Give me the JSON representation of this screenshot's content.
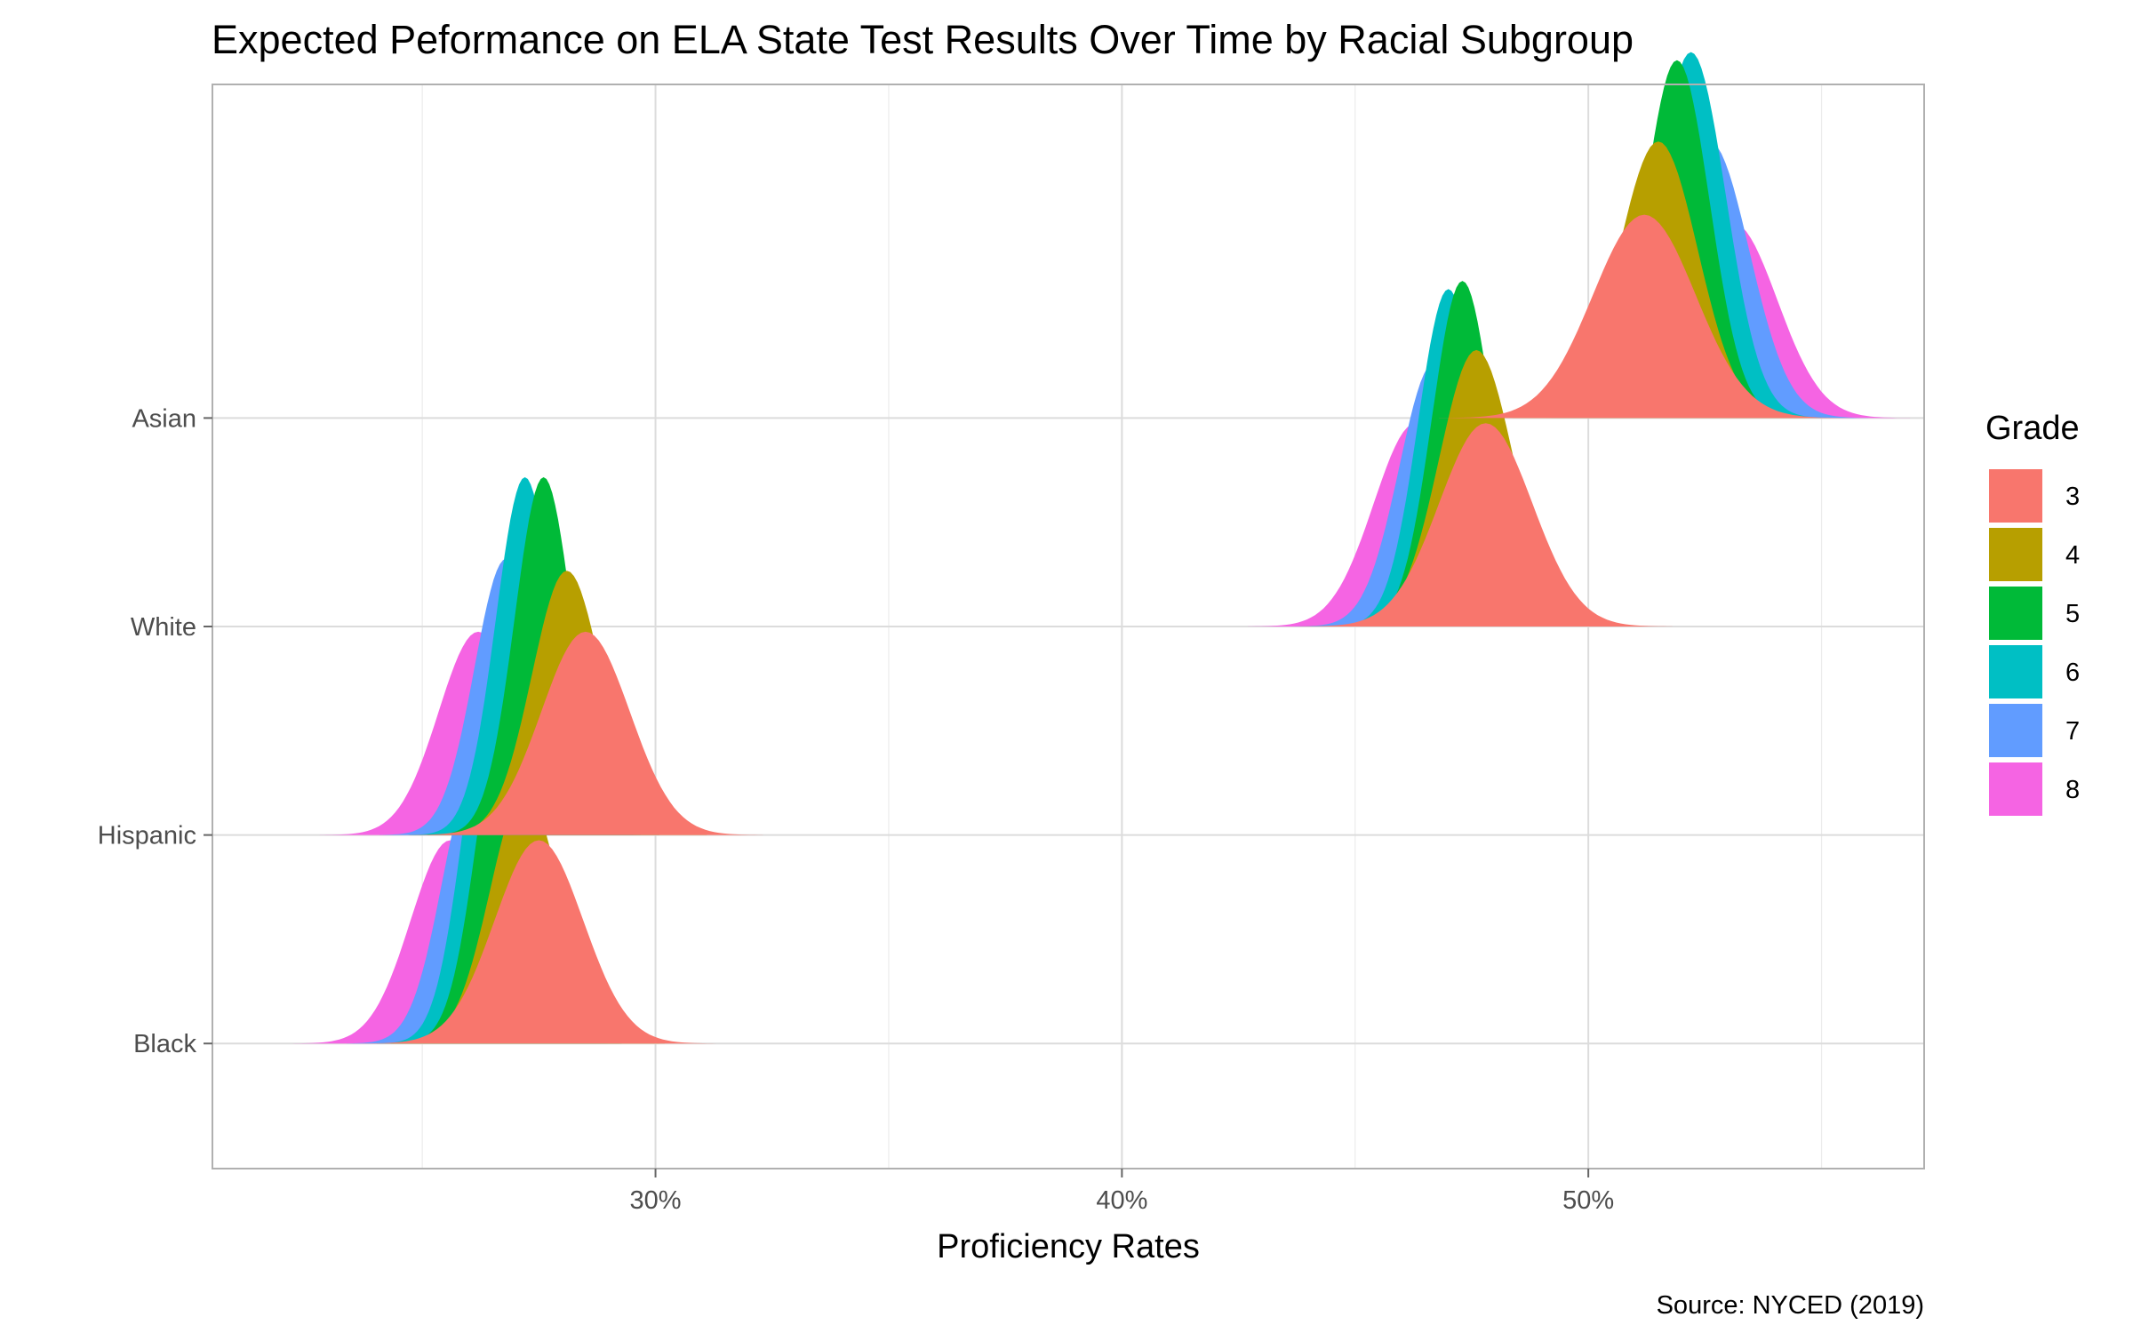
{
  "chart_data": {
    "type": "ridgeline-density",
    "title": "Expected Peformance on ELA State Test Results Over Time by Racial Subgroup",
    "xlabel": "Proficiency Rates",
    "ylabel": "",
    "caption": "Source: NYCED (2019)",
    "xlim": [
      0.205,
      0.572
    ],
    "x_ticks": [
      0.3,
      0.4,
      0.5
    ],
    "x_tick_labels": [
      "30%",
      "40%",
      "50%"
    ],
    "categories": [
      "Black",
      "Hispanic",
      "White",
      "Asian"
    ],
    "grid": true,
    "legend": {
      "title": "Grade",
      "position": "right",
      "entries": [
        {
          "label": "3",
          "color": "#F8766D"
        },
        {
          "label": "4",
          "color": "#B79F00"
        },
        {
          "label": "5",
          "color": "#00BA38"
        },
        {
          "label": "6",
          "color": "#00BFC4"
        },
        {
          "label": "7",
          "color": "#619CFF"
        },
        {
          "label": "8",
          "color": "#F564E3"
        }
      ]
    },
    "series": [
      {
        "group": "Black",
        "grade": "3",
        "mean": 0.275,
        "sd": 0.0095,
        "peak": 0.5
      },
      {
        "group": "Black",
        "grade": "4",
        "mean": 0.272,
        "sd": 0.0075,
        "peak": 0.62
      },
      {
        "group": "Black",
        "grade": "5",
        "mean": 0.268,
        "sd": 0.0062,
        "peak": 0.85
      },
      {
        "group": "Black",
        "grade": "6",
        "mean": 0.265,
        "sd": 0.0062,
        "peak": 0.88
      },
      {
        "group": "Black",
        "grade": "7",
        "mean": 0.261,
        "sd": 0.0068,
        "peak": 0.65
      },
      {
        "group": "Black",
        "grade": "8",
        "mean": 0.256,
        "sd": 0.0085,
        "peak": 0.5
      },
      {
        "group": "Hispanic",
        "grade": "3",
        "mean": 0.285,
        "sd": 0.0095,
        "peak": 0.5
      },
      {
        "group": "Hispanic",
        "grade": "4",
        "mean": 0.281,
        "sd": 0.0075,
        "peak": 0.65
      },
      {
        "group": "Hispanic",
        "grade": "5",
        "mean": 0.276,
        "sd": 0.0062,
        "peak": 0.88
      },
      {
        "group": "Hispanic",
        "grade": "6",
        "mean": 0.272,
        "sd": 0.0062,
        "peak": 0.88
      },
      {
        "group": "Hispanic",
        "grade": "7",
        "mean": 0.268,
        "sd": 0.0068,
        "peak": 0.68
      },
      {
        "group": "Hispanic",
        "grade": "8",
        "mean": 0.262,
        "sd": 0.0085,
        "peak": 0.5
      },
      {
        "group": "White",
        "grade": "3",
        "mean": 0.478,
        "sd": 0.01,
        "peak": 0.5
      },
      {
        "group": "White",
        "grade": "4",
        "mean": 0.476,
        "sd": 0.008,
        "peak": 0.68
      },
      {
        "group": "White",
        "grade": "5",
        "mean": 0.473,
        "sd": 0.0065,
        "peak": 0.85
      },
      {
        "group": "White",
        "grade": "6",
        "mean": 0.47,
        "sd": 0.0065,
        "peak": 0.83
      },
      {
        "group": "White",
        "grade": "7",
        "mean": 0.467,
        "sd": 0.0075,
        "peak": 0.65
      },
      {
        "group": "White",
        "grade": "8",
        "mean": 0.463,
        "sd": 0.009,
        "peak": 0.5
      },
      {
        "group": "Asian",
        "grade": "3",
        "mean": 0.512,
        "sd": 0.011,
        "peak": 0.5
      },
      {
        "group": "Asian",
        "grade": "4",
        "mean": 0.515,
        "sd": 0.0085,
        "peak": 0.68
      },
      {
        "group": "Asian",
        "grade": "5",
        "mean": 0.519,
        "sd": 0.007,
        "peak": 0.88
      },
      {
        "group": "Asian",
        "grade": "6",
        "mean": 0.522,
        "sd": 0.0075,
        "peak": 0.9
      },
      {
        "group": "Asian",
        "grade": "7",
        "mean": 0.526,
        "sd": 0.0085,
        "peak": 0.68
      },
      {
        "group": "Asian",
        "grade": "8",
        "mean": 0.531,
        "sd": 0.0095,
        "peak": 0.48
      }
    ]
  }
}
